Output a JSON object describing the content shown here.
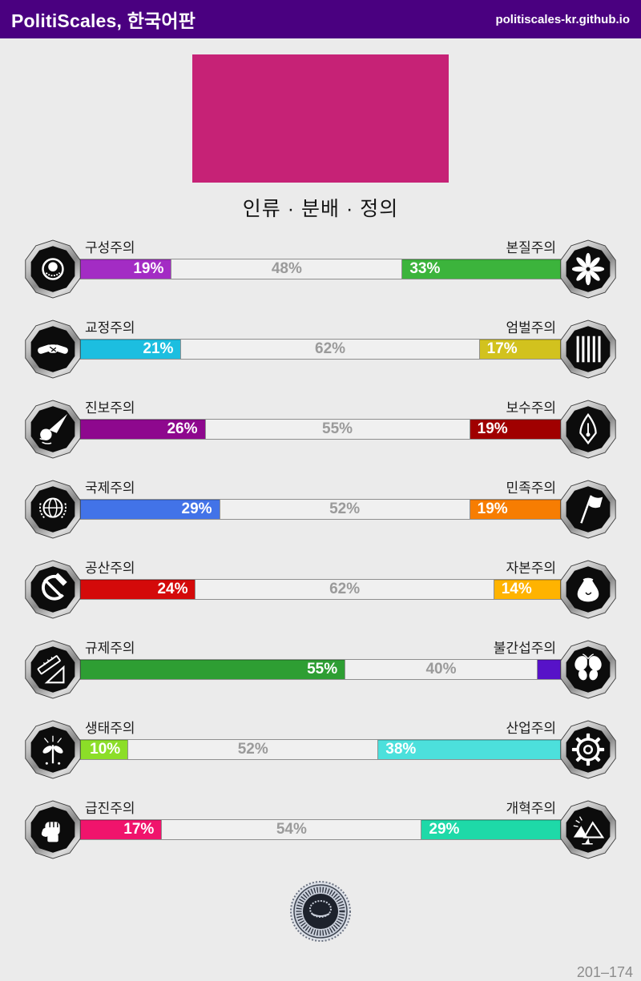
{
  "header": {
    "title": "PolitiScales, 한국어판",
    "site": "politiscales-kr.github.io"
  },
  "flag_color": "#c62276",
  "section_title": "인류 · 분배 · 정의",
  "axes": [
    {
      "left": {
        "label": "구성주의",
        "color": "#a32cc4",
        "value": 19,
        "text": "19%"
      },
      "middle": {
        "value": 48,
        "text": "48%"
      },
      "right": {
        "label": "본질주의",
        "color": "#3cb43c",
        "value": 33,
        "text": "33%"
      },
      "left_icon": "eye-icon",
      "right_icon": "flower-icon"
    },
    {
      "left": {
        "label": "교정주의",
        "color": "#1cbee0",
        "value": 21,
        "text": "21%"
      },
      "middle": {
        "value": 62,
        "text": "62%"
      },
      "right": {
        "label": "엄벌주의",
        "color": "#d2c21e",
        "value": 17,
        "text": "17%"
      },
      "left_icon": "handshake-icon",
      "right_icon": "prison-bars-icon"
    },
    {
      "left": {
        "label": "진보주의",
        "color": "#8e088e",
        "value": 26,
        "text": "26%"
      },
      "middle": {
        "value": 55,
        "text": "55%"
      },
      "right": {
        "label": "보수주의",
        "color": "#a00000",
        "value": 19,
        "text": "19%"
      },
      "left_icon": "comet-icon",
      "right_icon": "pen-nib-icon"
    },
    {
      "left": {
        "label": "국제주의",
        "color": "#4273e8",
        "value": 29,
        "text": "29%"
      },
      "middle": {
        "value": 52,
        "text": "52%"
      },
      "right": {
        "label": "민족주의",
        "color": "#f77d02",
        "value": 19,
        "text": "19%"
      },
      "left_icon": "globe-icon",
      "right_icon": "flag-icon"
    },
    {
      "left": {
        "label": "공산주의",
        "color": "#d40a0a",
        "value": 24,
        "text": "24%"
      },
      "middle": {
        "value": 62,
        "text": "62%"
      },
      "right": {
        "label": "자본주의",
        "color": "#ffb300",
        "value": 14,
        "text": "14%"
      },
      "left_icon": "hammer-sickle-icon",
      "right_icon": "money-bag-icon"
    },
    {
      "left": {
        "label": "규제주의",
        "color": "#2e9e33",
        "value": 55,
        "text": "55%"
      },
      "middle": {
        "value": 40,
        "text": "40%"
      },
      "right": {
        "label": "불간섭주의",
        "color": "#5712c8",
        "value": 5,
        "text": ""
      },
      "left_icon": "ruler-icon",
      "right_icon": "butterfly-icon"
    },
    {
      "left": {
        "label": "생태주의",
        "color": "#8cde28",
        "value": 10,
        "text": "10%"
      },
      "middle": {
        "value": 52,
        "text": "52%"
      },
      "right": {
        "label": "산업주의",
        "color": "#4ce0dc",
        "value": 38,
        "text": "38%"
      },
      "left_icon": "plant-icon",
      "right_icon": "gear-icon"
    },
    {
      "left": {
        "label": "급진주의",
        "color": "#f0146c",
        "value": 17,
        "text": "17%"
      },
      "middle": {
        "value": 54,
        "text": "54%"
      },
      "right": {
        "label": "개혁주의",
        "color": "#1ed9a8",
        "value": 29,
        "text": "29%"
      },
      "left_icon": "fist-icon",
      "right_icon": "sunrise-icon"
    }
  ],
  "seal": {
    "name": "pragmatism-seal"
  },
  "footer": {
    "score": "201–174"
  }
}
